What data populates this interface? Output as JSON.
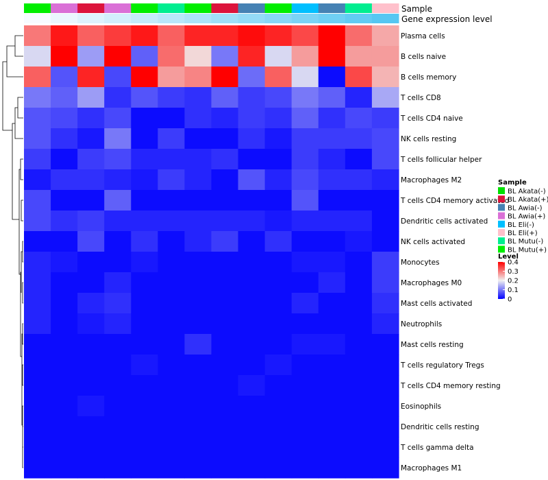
{
  "chart_data": {
    "type": "heatmap",
    "annotation_labels": [
      "Sample",
      "Gene expression level"
    ],
    "sample_annotation": [
      "BL Mutu(+)",
      "BL Awia(+)",
      "BL Akata(+)",
      "BL Awia(+)",
      "BL Mutu(+)",
      "BL Mutu(-)",
      "BL Mutu(+)",
      "BL Akata(+)",
      "BL Awia(-)",
      "BL Mutu(+)",
      "BL Eli(-)",
      "BL Awia(-)",
      "BL Mutu(-)",
      "BL Eli(+)"
    ],
    "level_annotation": [
      0.02,
      0.05,
      0.08,
      0.11,
      0.14,
      0.17,
      0.2,
      0.23,
      0.26,
      0.29,
      0.32,
      0.35,
      0.38,
      0.41
    ],
    "rows": [
      "Plasma cells",
      "B cells naive",
      "B cells memory",
      "T cells CD8",
      "T cells CD4 naive",
      "NK cells resting",
      "T cells follicular helper",
      "Macrophages M2",
      "T cells CD4 memory activated",
      "Dendritic cells activated",
      "NK cells activated",
      "Monocytes",
      "Macrophages M0",
      "Mast cells activated",
      "Neutrophils",
      "Mast cells resting",
      "T cells regulatory  Tregs",
      "T cells CD4 memory resting",
      "Eosinophils",
      "Dendritic cells resting",
      "T cells gamma delta",
      "Macrophages M1"
    ],
    "values": [
      [
        0.3,
        0.38,
        0.32,
        0.35,
        0.38,
        0.32,
        0.37,
        0.37,
        0.39,
        0.37,
        0.34,
        0.41,
        0.31,
        0.26
      ],
      [
        0.18,
        0.42,
        0.13,
        0.42,
        0.08,
        0.31,
        0.22,
        0.1,
        0.37,
        0.18,
        0.27,
        0.42,
        0.27,
        0.27
      ],
      [
        0.32,
        0.07,
        0.37,
        0.06,
        0.42,
        0.27,
        0.29,
        0.42,
        0.09,
        0.32,
        0.18,
        0.01,
        0.34,
        0.25
      ],
      [
        0.1,
        0.08,
        0.13,
        0.04,
        0.07,
        0.05,
        0.04,
        0.08,
        0.05,
        0.06,
        0.1,
        0.08,
        0.03,
        0.14
      ],
      [
        0.07,
        0.06,
        0.04,
        0.06,
        0.01,
        0.01,
        0.04,
        0.03,
        0.05,
        0.04,
        0.08,
        0.04,
        0.06,
        0.05
      ],
      [
        0.07,
        0.04,
        0.02,
        0.1,
        0.01,
        0.05,
        0.01,
        0.01,
        0.04,
        0.02,
        0.05,
        0.05,
        0.05,
        0.06
      ],
      [
        0.05,
        0.01,
        0.05,
        0.06,
        0.03,
        0.03,
        0.03,
        0.04,
        0.01,
        0.01,
        0.05,
        0.03,
        0.01,
        0.06
      ],
      [
        0.02,
        0.04,
        0.04,
        0.03,
        0.02,
        0.05,
        0.03,
        0.01,
        0.07,
        0.03,
        0.06,
        0.04,
        0.04,
        0.03
      ],
      [
        0.06,
        0.01,
        0.01,
        0.08,
        0.01,
        0.01,
        0.01,
        0.01,
        0.01,
        0.01,
        0.07,
        0.01,
        0.01,
        0.01
      ],
      [
        0.06,
        0.04,
        0.05,
        0.03,
        0.03,
        0.03,
        0.03,
        0.03,
        0.03,
        0.02,
        0.03,
        0.03,
        0.03,
        0.01
      ],
      [
        0.01,
        0.01,
        0.06,
        0.01,
        0.04,
        0.01,
        0.03,
        0.05,
        0.01,
        0.04,
        0.01,
        0.01,
        0.02,
        0.01
      ],
      [
        0.03,
        0.02,
        0.01,
        0.01,
        0.02,
        0.01,
        0.01,
        0.01,
        0.01,
        0.01,
        0.02,
        0.02,
        0.01,
        0.05
      ],
      [
        0.03,
        0.01,
        0.01,
        0.03,
        0.01,
        0.01,
        0.01,
        0.01,
        0.01,
        0.01,
        0.01,
        0.03,
        0.01,
        0.05
      ],
      [
        0.03,
        0.01,
        0.03,
        0.04,
        0.01,
        0.01,
        0.01,
        0.01,
        0.01,
        0.01,
        0.03,
        0.01,
        0.01,
        0.04
      ],
      [
        0.03,
        0.01,
        0.02,
        0.03,
        0.01,
        0.01,
        0.01,
        0.01,
        0.01,
        0.01,
        0.01,
        0.01,
        0.01,
        0.03
      ],
      [
        0.01,
        0.01,
        0.01,
        0.01,
        0.01,
        0.01,
        0.04,
        0.01,
        0.01,
        0.01,
        0.02,
        0.02,
        0.01,
        0.01
      ],
      [
        0.01,
        0.01,
        0.01,
        0.01,
        0.02,
        0.01,
        0.01,
        0.01,
        0.01,
        0.02,
        0.01,
        0.01,
        0.01,
        0.01
      ],
      [
        0.01,
        0.01,
        0.01,
        0.01,
        0.01,
        0.01,
        0.01,
        0.01,
        0.02,
        0.01,
        0.01,
        0.01,
        0.01,
        0.01
      ],
      [
        0.01,
        0.01,
        0.02,
        0.01,
        0.01,
        0.01,
        0.01,
        0.01,
        0.01,
        0.01,
        0.01,
        0.01,
        0.01,
        0.01
      ],
      [
        0.01,
        0.01,
        0.01,
        0.01,
        0.01,
        0.01,
        0.01,
        0.01,
        0.01,
        0.01,
        0.01,
        0.01,
        0.01,
        0.01
      ],
      [
        0.01,
        0.01,
        0.01,
        0.01,
        0.01,
        0.01,
        0.01,
        0.01,
        0.01,
        0.01,
        0.01,
        0.01,
        0.01,
        0.01
      ],
      [
        0.01,
        0.01,
        0.01,
        0.01,
        0.01,
        0.01,
        0.01,
        0.01,
        0.01,
        0.01,
        0.01,
        0.01,
        0.01,
        0.01
      ]
    ],
    "color_scale": {
      "min": 0,
      "mid": 0.2,
      "max": 0.4,
      "low_color": "#0000ff",
      "mid_color": "#f0f0f0",
      "high_color": "#ff0000"
    },
    "legend_sample": {
      "title": "Sample",
      "entries": [
        {
          "label": "BL Akata(-)",
          "color": "#00e000"
        },
        {
          "label": "BL Akata(+)",
          "color": "#dc143c"
        },
        {
          "label": "BL Awia(-)",
          "color": "#4682b4"
        },
        {
          "label": "BL Awia(+)",
          "color": "#da70d6"
        },
        {
          "label": "BL Eli(-)",
          "color": "#00bfff"
        },
        {
          "label": "BL Eli(+)",
          "color": "#ffc0cb"
        },
        {
          "label": "BL Mutu(-)",
          "color": "#00ee90"
        },
        {
          "label": "BL Mutu(+)",
          "color": "#00ee00"
        }
      ]
    },
    "legend_level": {
      "title": "Level",
      "ticks": [
        "0.4",
        "0.3",
        "0.2",
        "0.1",
        "0"
      ],
      "tick_values": [
        0.4,
        0.3,
        0.2,
        0.1,
        0
      ]
    },
    "level_annotation_colors": {
      "low": "#f7fbff",
      "high": "#56c7f2"
    }
  }
}
